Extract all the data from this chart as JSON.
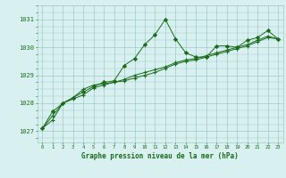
{
  "x": [
    0,
    1,
    2,
    3,
    4,
    5,
    6,
    7,
    8,
    9,
    10,
    11,
    12,
    13,
    14,
    15,
    16,
    17,
    18,
    19,
    20,
    21,
    22,
    23
  ],
  "series1": [
    1027.1,
    1027.7,
    1028.0,
    1028.2,
    1028.4,
    1028.6,
    1028.75,
    1028.8,
    1029.35,
    1029.6,
    1030.1,
    1030.45,
    1031.0,
    1030.3,
    1029.8,
    1029.65,
    1029.65,
    1030.05,
    1030.05,
    1030.0,
    1030.25,
    1030.35,
    1030.6,
    1030.3
  ],
  "series2": [
    1027.1,
    1027.4,
    1028.0,
    1028.2,
    1028.5,
    1028.65,
    1028.7,
    1028.75,
    1028.8,
    1028.9,
    1029.0,
    1029.1,
    1029.25,
    1029.4,
    1029.5,
    1029.55,
    1029.65,
    1029.75,
    1029.85,
    1029.95,
    1030.05,
    1030.2,
    1030.35,
    1030.3
  ],
  "series3": [
    1027.1,
    1027.55,
    1028.0,
    1028.15,
    1028.3,
    1028.55,
    1028.65,
    1028.75,
    1028.85,
    1029.0,
    1029.1,
    1029.2,
    1029.3,
    1029.45,
    1029.55,
    1029.6,
    1029.7,
    1029.8,
    1029.9,
    1030.0,
    1030.1,
    1030.25,
    1030.4,
    1030.3
  ],
  "line_color": "#1a6b1a",
  "marker_color": "#1a6b1a",
  "bg_color": "#d8f0f0",
  "grid_color": "#a0c8c8",
  "text_color": "#1a6b1a",
  "xlabel": "Graphe pression niveau de la mer (hPa)",
  "ylim_min": 1026.6,
  "ylim_max": 1031.5,
  "yticks": [
    1027,
    1028,
    1029,
    1030,
    1031
  ],
  "xticks": [
    0,
    1,
    2,
    3,
    4,
    5,
    6,
    7,
    8,
    9,
    10,
    11,
    12,
    13,
    14,
    15,
    16,
    17,
    18,
    19,
    20,
    21,
    22,
    23
  ]
}
